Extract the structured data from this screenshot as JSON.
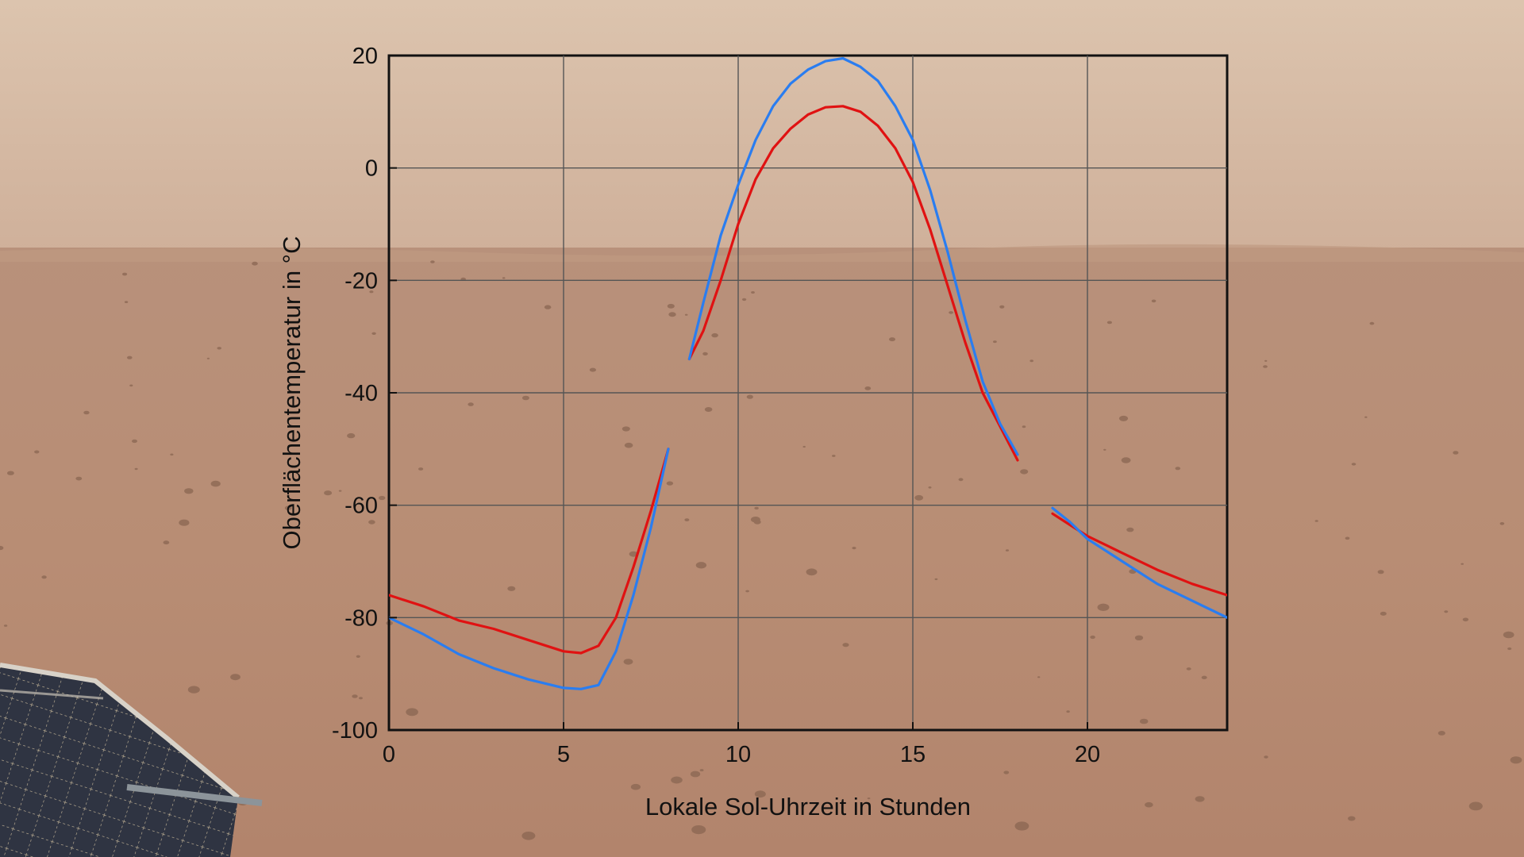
{
  "chart_data": {
    "type": "line",
    "xlabel": "Lokale Sol-Uhrzeit in Stunden",
    "ylabel": "Oberflächentemperatur in °C",
    "xlim": [
      0,
      24
    ],
    "ylim": [
      -100,
      20
    ],
    "xticks": [
      0,
      5,
      10,
      15,
      20
    ],
    "yticks": [
      20,
      0,
      -20,
      -40,
      -60,
      -80,
      -100
    ],
    "x_gridlines": [
      5,
      10,
      15,
      20
    ],
    "y_gridlines": [
      0,
      -20,
      -40,
      -60,
      -80
    ],
    "grid": true,
    "background": "photograph of the Martian surface with a solar panel in the lower-left corner",
    "series": [
      {
        "color": "#e01212",
        "segments": [
          [
            [
              0,
              -76
            ],
            [
              1,
              -78
            ],
            [
              2,
              -80.5
            ],
            [
              3,
              -82
            ],
            [
              4,
              -84
            ],
            [
              5,
              -86
            ],
            [
              5.5,
              -86.3
            ],
            [
              6,
              -85
            ],
            [
              6.5,
              -80
            ],
            [
              7,
              -71
            ],
            [
              7.5,
              -61
            ],
            [
              8,
              -50
            ]
          ],
          [
            [
              8.6,
              -34
            ],
            [
              9,
              -29
            ],
            [
              9.5,
              -20
            ],
            [
              10,
              -10
            ],
            [
              10.5,
              -2
            ],
            [
              11,
              3.5
            ],
            [
              11.5,
              7
            ],
            [
              12,
              9.5
            ],
            [
              12.5,
              10.8
            ],
            [
              13,
              11
            ],
            [
              13.5,
              10
            ],
            [
              14,
              7.5
            ],
            [
              14.5,
              3.5
            ],
            [
              15,
              -2.5
            ],
            [
              15.5,
              -11
            ],
            [
              16,
              -21
            ],
            [
              16.5,
              -31
            ],
            [
              17,
              -40
            ],
            [
              17.5,
              -46
            ],
            [
              18,
              -52
            ]
          ],
          [
            [
              19,
              -61.5
            ],
            [
              19.5,
              -63.5
            ],
            [
              20,
              -65.5
            ],
            [
              21,
              -68.5
            ],
            [
              22,
              -71.5
            ],
            [
              23,
              -74
            ],
            [
              24,
              -76
            ]
          ]
        ]
      },
      {
        "color": "#2a7df0",
        "segments": [
          [
            [
              0,
              -80
            ],
            [
              1,
              -83
            ],
            [
              2,
              -86.5
            ],
            [
              3,
              -89
            ],
            [
              4,
              -91
            ],
            [
              5,
              -92.5
            ],
            [
              5.5,
              -92.7
            ],
            [
              6,
              -92
            ],
            [
              6.5,
              -86
            ],
            [
              7,
              -76
            ],
            [
              7.5,
              -64
            ],
            [
              8,
              -50
            ]
          ],
          [
            [
              8.6,
              -34
            ],
            [
              9,
              -24
            ],
            [
              9.5,
              -12
            ],
            [
              10,
              -3
            ],
            [
              10.5,
              5
            ],
            [
              11,
              11
            ],
            [
              11.5,
              15
            ],
            [
              12,
              17.5
            ],
            [
              12.5,
              19
            ],
            [
              13,
              19.5
            ],
            [
              13.5,
              18
            ],
            [
              14,
              15.5
            ],
            [
              14.5,
              11
            ],
            [
              15,
              5
            ],
            [
              15.5,
              -4
            ],
            [
              16,
              -15
            ],
            [
              16.5,
              -27
            ],
            [
              17,
              -38
            ],
            [
              17.5,
              -45.5
            ],
            [
              18,
              -51
            ]
          ],
          [
            [
              19,
              -60.5
            ],
            [
              19.5,
              -63
            ],
            [
              20,
              -66
            ],
            [
              21,
              -70
            ],
            [
              22,
              -74
            ],
            [
              23,
              -77
            ],
            [
              24,
              -80
            ]
          ]
        ]
      }
    ]
  }
}
